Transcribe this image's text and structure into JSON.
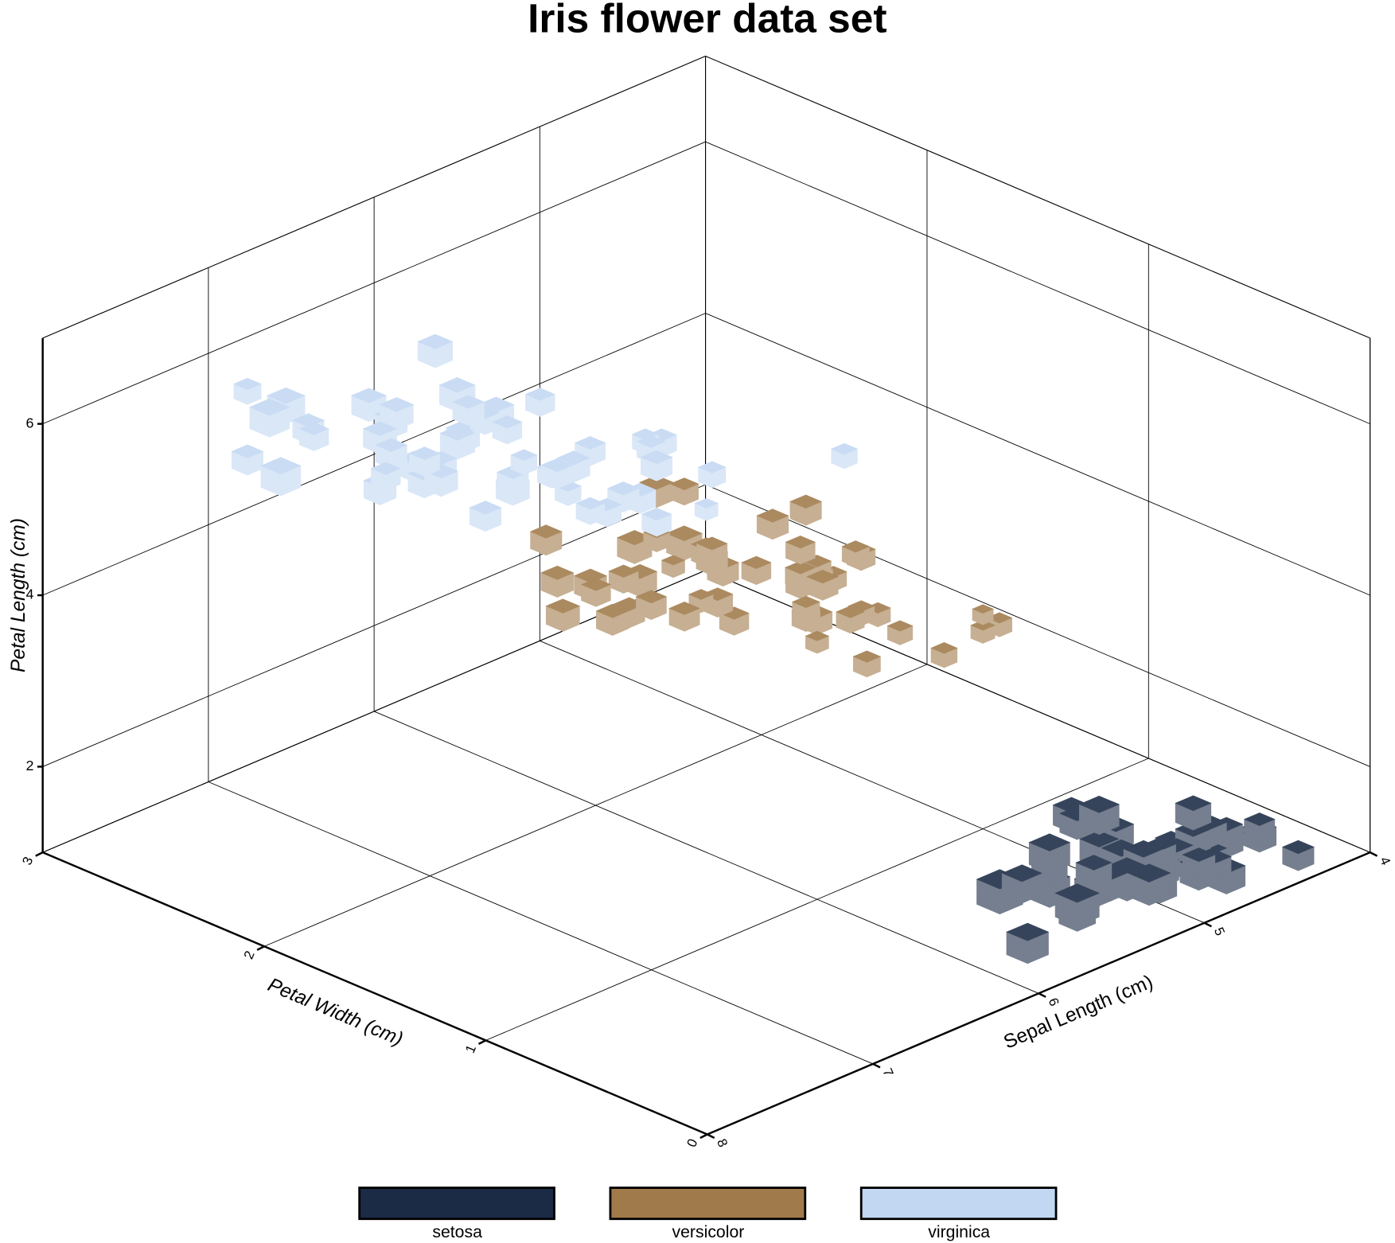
{
  "chart_data": {
    "type": "scatter3d",
    "title": "Iris flower data set",
    "xlabel": "Sepal Length (cm)",
    "ylabel": "Petal Width (cm)",
    "zlabel": "Petal Length (cm)",
    "xlim": [
      4,
      8
    ],
    "ylim": [
      0,
      3
    ],
    "zlim": [
      1,
      7
    ],
    "xticks": [
      4,
      5,
      6,
      7,
      8
    ],
    "yticks": [
      0,
      1,
      2,
      3
    ],
    "zticks": [
      2,
      4,
      6
    ],
    "grid": true,
    "series": [
      {
        "name": "setosa",
        "color": "#1b2a45",
        "x": [
          5.1,
          4.9,
          4.7,
          4.6,
          5.0,
          5.4,
          4.6,
          5.0,
          4.4,
          4.9,
          5.4,
          4.8,
          4.8,
          4.3,
          5.8,
          5.7,
          5.4,
          5.1,
          5.7,
          5.1,
          5.4,
          5.1,
          4.6,
          5.1,
          4.8,
          5.0,
          5.0,
          5.2,
          5.2,
          4.7,
          4.8,
          5.4,
          5.2,
          5.5,
          4.9,
          5.0,
          5.5,
          4.9,
          4.4,
          5.1,
          5.0,
          4.5,
          4.4,
          5.0,
          5.1,
          4.8,
          5.1,
          4.6,
          5.3,
          5.0
        ],
        "y": [
          0.2,
          0.2,
          0.2,
          0.2,
          0.2,
          0.4,
          0.3,
          0.2,
          0.2,
          0.1,
          0.2,
          0.2,
          0.1,
          0.1,
          0.2,
          0.4,
          0.4,
          0.3,
          0.3,
          0.3,
          0.2,
          0.4,
          0.2,
          0.5,
          0.2,
          0.2,
          0.4,
          0.2,
          0.2,
          0.2,
          0.2,
          0.4,
          0.1,
          0.2,
          0.2,
          0.2,
          0.2,
          0.1,
          0.2,
          0.2,
          0.3,
          0.3,
          0.2,
          0.6,
          0.4,
          0.3,
          0.2,
          0.2,
          0.2,
          0.2
        ],
        "z": [
          1.4,
          1.4,
          1.3,
          1.5,
          1.4,
          1.7,
          1.4,
          1.5,
          1.4,
          1.5,
          1.5,
          1.6,
          1.4,
          1.1,
          1.2,
          1.5,
          1.3,
          1.4,
          1.7,
          1.5,
          1.7,
          1.5,
          1.0,
          1.7,
          1.9,
          1.6,
          1.6,
          1.5,
          1.4,
          1.6,
          1.6,
          1.5,
          1.5,
          1.4,
          1.5,
          1.2,
          1.3,
          1.4,
          1.3,
          1.5,
          1.3,
          1.3,
          1.3,
          1.6,
          1.9,
          1.4,
          1.6,
          1.4,
          1.5,
          1.4
        ],
        "size": [
          3.5,
          3.0,
          3.2,
          3.1,
          3.6,
          3.9,
          3.4,
          3.4,
          2.9,
          3.1,
          3.7,
          3.4,
          3.0,
          3.0,
          4.0,
          4.4,
          3.9,
          3.5,
          3.8,
          3.8,
          3.4,
          3.7,
          3.6,
          3.3,
          3.4,
          3.0,
          3.4,
          3.5,
          3.4,
          3.2,
          3.1,
          3.4,
          4.1,
          4.2,
          3.1,
          3.2,
          3.5,
          3.6,
          3.0,
          3.4,
          3.5,
          2.3,
          3.2,
          3.5,
          3.8,
          3.0,
          3.8,
          3.2,
          3.7,
          3.3
        ]
      },
      {
        "name": "versicolor",
        "color": "#a07a4a",
        "x": [
          7.0,
          6.4,
          6.9,
          5.5,
          6.5,
          5.7,
          6.3,
          4.9,
          6.6,
          5.2,
          5.0,
          5.9,
          6.0,
          6.1,
          5.6,
          6.7,
          5.6,
          5.8,
          6.2,
          5.6,
          5.9,
          6.1,
          6.3,
          6.1,
          6.4,
          6.6,
          6.8,
          6.7,
          6.0,
          5.7,
          5.5,
          5.5,
          5.8,
          6.0,
          5.4,
          6.0,
          6.7,
          6.3,
          5.6,
          5.5,
          5.5,
          6.1,
          5.8,
          5.0,
          5.6,
          5.7,
          5.7,
          6.2,
          5.1,
          5.7
        ],
        "y": [
          1.4,
          1.5,
          1.5,
          1.3,
          1.5,
          1.3,
          1.6,
          1.0,
          1.3,
          1.4,
          1.0,
          1.5,
          1.0,
          1.4,
          1.3,
          1.4,
          1.5,
          1.0,
          1.5,
          1.1,
          1.8,
          1.3,
          1.5,
          1.2,
          1.3,
          1.4,
          1.4,
          1.7,
          1.5,
          1.0,
          1.1,
          1.0,
          1.2,
          1.6,
          1.5,
          1.6,
          1.5,
          1.3,
          1.3,
          1.3,
          1.2,
          1.4,
          1.2,
          1.0,
          1.3,
          1.2,
          1.3,
          1.3,
          1.1,
          1.3
        ],
        "z": [
          4.7,
          4.5,
          4.9,
          4.0,
          4.6,
          4.5,
          4.7,
          3.3,
          4.6,
          3.9,
          3.5,
          4.2,
          4.0,
          4.7,
          3.6,
          4.4,
          4.5,
          4.1,
          4.5,
          3.9,
          4.8,
          4.0,
          4.9,
          4.7,
          4.3,
          4.4,
          4.8,
          5.0,
          4.5,
          3.5,
          3.8,
          3.7,
          3.9,
          5.1,
          4.5,
          4.5,
          4.7,
          4.4,
          4.1,
          4.0,
          4.4,
          4.6,
          4.0,
          3.3,
          4.2,
          4.2,
          4.2,
          4.3,
          3.0,
          4.1
        ],
        "size": [
          3.2,
          3.2,
          3.1,
          2.3,
          2.8,
          2.8,
          3.3,
          2.4,
          2.9,
          2.7,
          2.0,
          3.0,
          2.2,
          2.9,
          2.9,
          3.1,
          3.0,
          2.7,
          2.2,
          2.5,
          3.2,
          2.8,
          2.5,
          2.8,
          2.9,
          3.0,
          2.8,
          3.0,
          2.9,
          2.6,
          2.4,
          2.4,
          2.7,
          2.7,
          3.0,
          3.4,
          3.1,
          2.3,
          3.0,
          2.5,
          2.6,
          3.0,
          2.6,
          2.3,
          2.7,
          3.0,
          2.9,
          2.9,
          2.5,
          2.8
        ]
      },
      {
        "name": "virginica",
        "color": "#c2d7f2",
        "x": [
          6.3,
          5.8,
          7.1,
          6.3,
          6.5,
          7.6,
          4.9,
          7.3,
          6.7,
          7.2,
          6.5,
          6.4,
          6.8,
          5.7,
          5.8,
          6.4,
          6.5,
          7.7,
          7.7,
          6.0,
          6.9,
          5.6,
          7.7,
          6.3,
          6.7,
          7.2,
          6.2,
          6.1,
          6.4,
          7.2,
          7.4,
          7.9,
          6.4,
          6.3,
          6.1,
          7.7,
          6.3,
          6.4,
          6.0,
          6.9,
          6.7,
          6.9,
          5.8,
          6.8,
          6.7,
          6.7,
          6.3,
          6.5,
          6.2,
          5.9
        ],
        "y": [
          2.5,
          1.9,
          2.1,
          1.8,
          2.2,
          2.1,
          1.7,
          1.8,
          1.8,
          2.5,
          2.0,
          1.9,
          2.1,
          2.0,
          2.4,
          2.3,
          1.8,
          2.2,
          2.3,
          1.5,
          2.3,
          2.0,
          2.0,
          1.8,
          2.1,
          1.8,
          1.8,
          1.8,
          2.1,
          1.6,
          1.9,
          2.0,
          2.2,
          1.5,
          1.4,
          2.3,
          2.4,
          1.8,
          1.8,
          2.1,
          2.4,
          2.3,
          1.9,
          2.3,
          2.5,
          2.3,
          1.9,
          2.0,
          2.3,
          1.8
        ],
        "z": [
          6.0,
          5.1,
          5.9,
          5.6,
          5.8,
          6.6,
          4.5,
          6.3,
          5.8,
          6.1,
          5.1,
          5.3,
          5.5,
          5.0,
          5.1,
          5.3,
          5.5,
          6.7,
          6.9,
          5.0,
          5.7,
          4.9,
          6.7,
          4.9,
          5.7,
          6.0,
          4.8,
          4.9,
          5.6,
          5.8,
          6.1,
          6.4,
          5.6,
          5.1,
          5.6,
          6.1,
          5.6,
          5.5,
          4.8,
          5.4,
          5.6,
          5.1,
          5.1,
          5.9,
          5.7,
          5.2,
          5.0,
          5.2,
          5.4,
          5.1
        ],
        "size": [
          3.3,
          2.7,
          3.0,
          2.9,
          3.0,
          3.0,
          2.5,
          2.9,
          2.5,
          3.6,
          3.2,
          2.7,
          3.0,
          2.5,
          2.8,
          3.2,
          3.0,
          3.8,
          2.6,
          2.2,
          3.2,
          2.8,
          2.8,
          2.7,
          3.3,
          3.2,
          2.8,
          3.0,
          2.8,
          3.0,
          2.8,
          3.8,
          2.8,
          2.8,
          2.6,
          3.0,
          3.4,
          3.1,
          3.0,
          3.1,
          3.1,
          3.1,
          2.7,
          3.2,
          3.3,
          3.0,
          2.5,
          3.0,
          3.4,
          3.0
        ]
      }
    ]
  }
}
